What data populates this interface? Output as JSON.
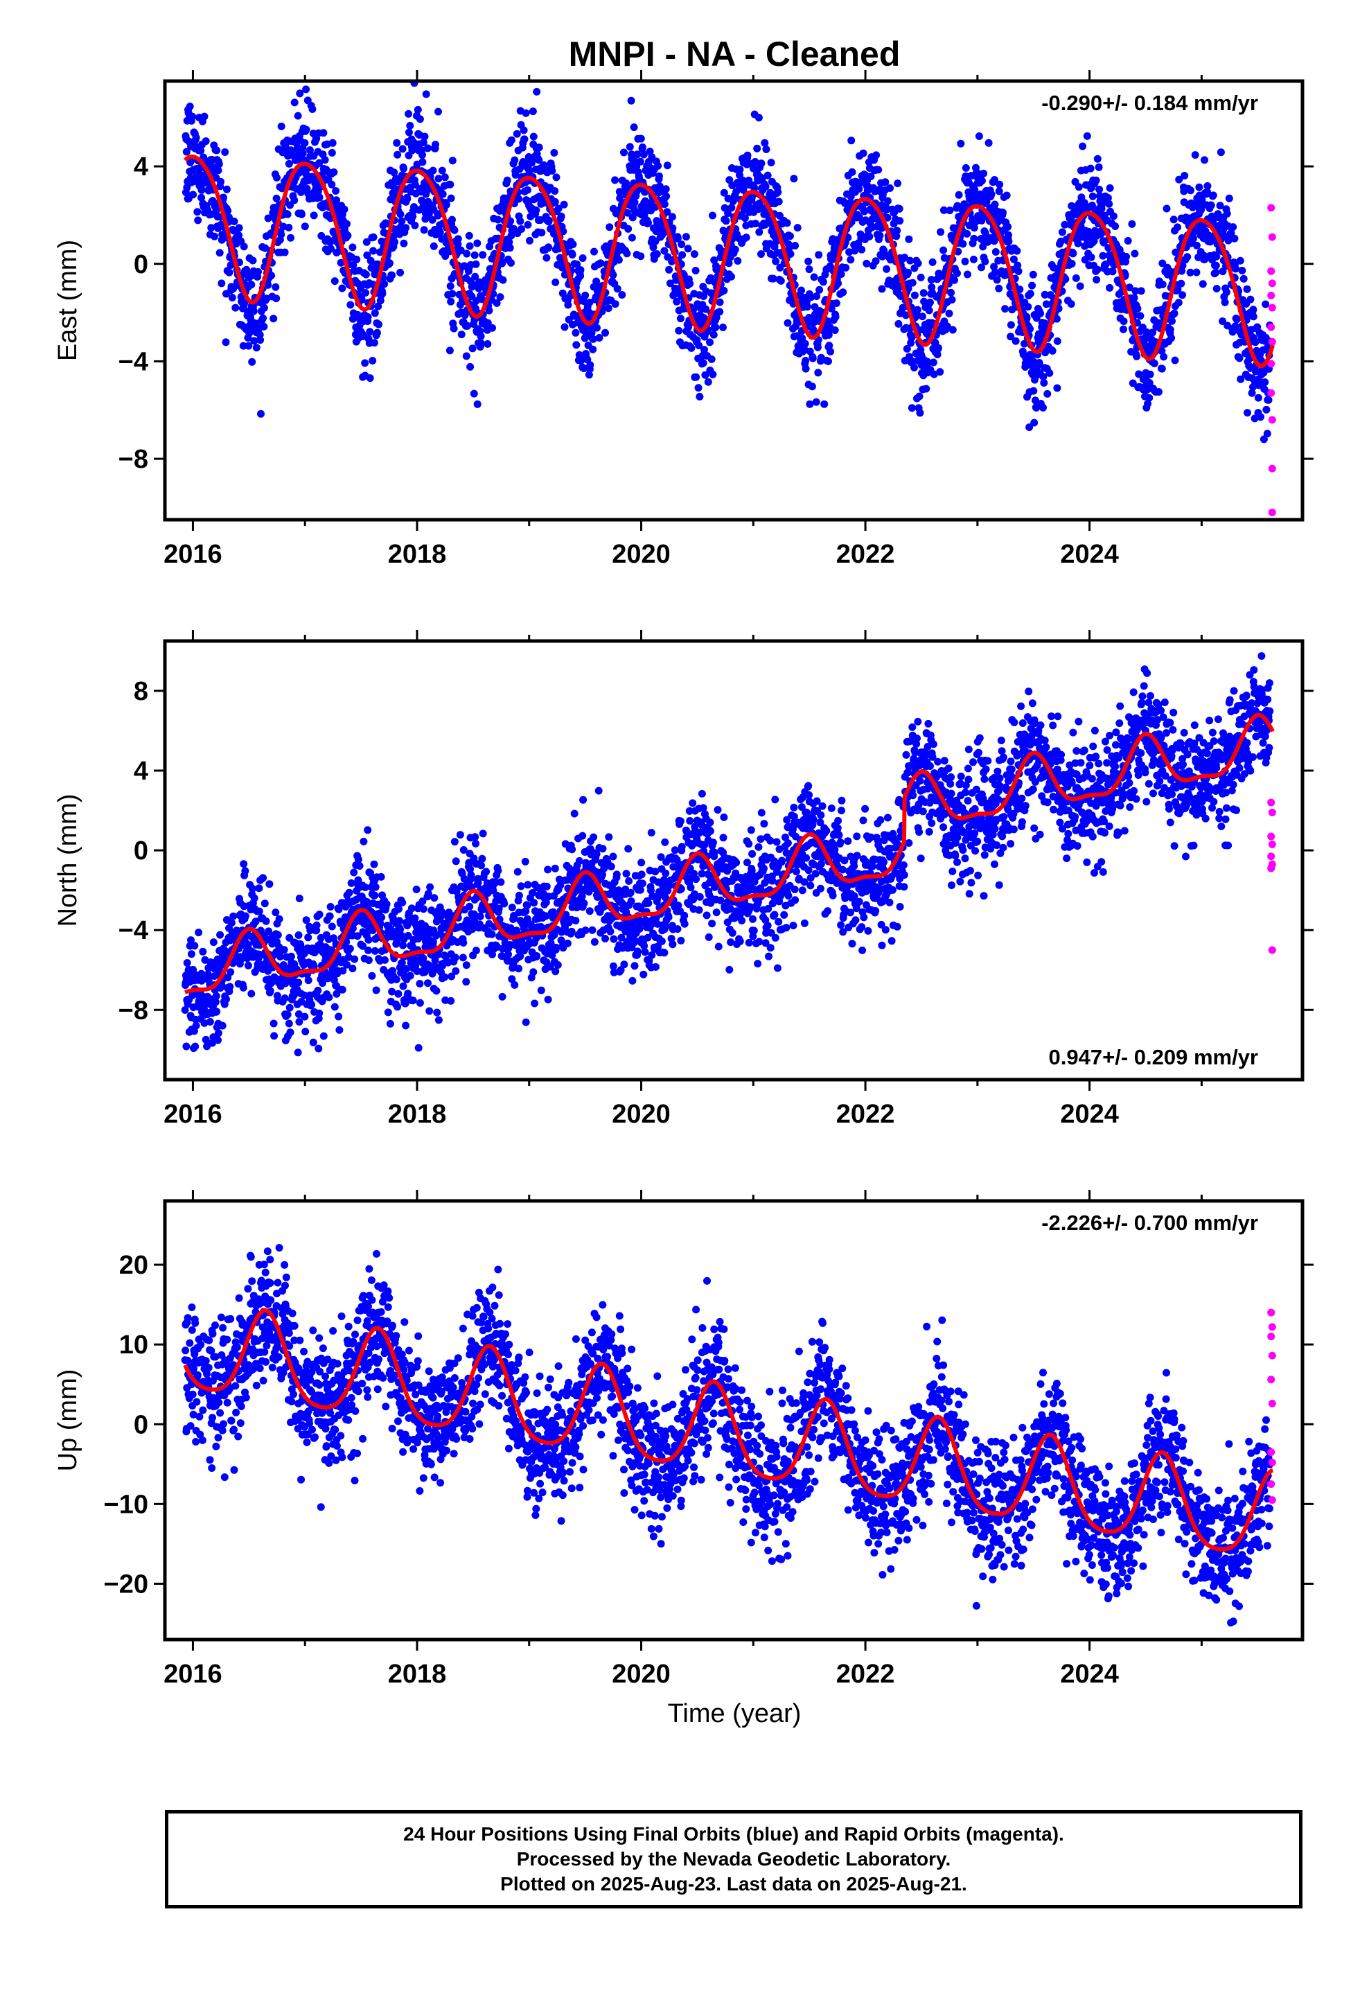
{
  "chart_data": {
    "title": "MNPI  - NA - Cleaned",
    "xlabel": "Time (year)",
    "x_tick_labels": [
      "2016",
      "2018",
      "2020",
      "2022",
      "2024"
    ],
    "colors": {
      "final_orbits": "#0000ff",
      "rapid_orbits": "#ff00ff",
      "model": "#ff0000",
      "frame": "#000000"
    },
    "panels": [
      {
        "type": "scatter",
        "name": "east",
        "ylabel": "East (mm)",
        "rate_label": "-0.290+/- 0.184 mm/yr",
        "rate_position": "top-right",
        "xlim": [
          2015.75,
          2025.9
        ],
        "ylim": [
          -10.5,
          7.5
        ],
        "yticks": [
          4,
          0,
          -4,
          -8
        ],
        "ytick_labels": [
          "4",
          "0",
          "−4",
          "−8"
        ],
        "model": {
          "offset": 0.5,
          "trend": -0.29,
          "annual_amp": 2.9,
          "annual_peak": 0.02,
          "semiannual_amp": 0.35,
          "semiannual_peak": 0.3,
          "ref_year": 2020.5
        },
        "scatter_sigma": 1.2,
        "rapid_points": [
          [
            2025.62,
            2.3
          ],
          [
            2025.63,
            1.1
          ],
          [
            2025.62,
            -0.3
          ],
          [
            2025.63,
            -0.8
          ],
          [
            2025.62,
            -1.3
          ],
          [
            2025.63,
            -1.8
          ],
          [
            2025.62,
            -2.6
          ],
          [
            2025.63,
            -3.2
          ],
          [
            2025.62,
            -4.1
          ],
          [
            2025.62,
            -5.3
          ],
          [
            2025.63,
            -6.4
          ],
          [
            2025.63,
            -8.4
          ],
          [
            2025.63,
            -10.2
          ]
        ]
      },
      {
        "type": "scatter",
        "name": "north",
        "ylabel": "North (mm)",
        "rate_label": "0.947+/- 0.209 mm/yr",
        "rate_position": "bottom-right",
        "xlim": [
          2015.75,
          2025.9
        ],
        "ylim": [
          -11.5,
          10.5
        ],
        "yticks": [
          8,
          4,
          0,
          -4,
          -8
        ],
        "ytick_labels": [
          "8",
          "4",
          "0",
          "−4",
          "−8"
        ],
        "model": {
          "offset": -0.8,
          "trend": 0.947,
          "annual_amp": 1.3,
          "annual_peak": 0.5,
          "semiannual_amp": 0.45,
          "semiannual_peak": 0.5,
          "ref_year": 2020.5,
          "step_year": 2022.35,
          "step_size": 2.2
        },
        "scatter_sigma": 1.4,
        "rapid_points": [
          [
            2025.62,
            2.4
          ],
          [
            2025.63,
            1.9
          ],
          [
            2025.62,
            0.7
          ],
          [
            2025.63,
            0.3
          ],
          [
            2025.62,
            -0.3
          ],
          [
            2025.63,
            -0.7
          ],
          [
            2025.62,
            -0.9
          ],
          [
            2025.63,
            -5.0
          ]
        ]
      },
      {
        "type": "scatter",
        "name": "up",
        "ylabel": "Up (mm)",
        "rate_label": "-2.226+/- 0.700 mm/yr",
        "rate_position": "top-right",
        "xlim": [
          2015.75,
          2025.9
        ],
        "ylim": [
          -27,
          28
        ],
        "yticks": [
          20,
          10,
          0,
          -10,
          -20
        ],
        "ytick_labels": [
          "20",
          "10",
          "0",
          "−10",
          "−20"
        ],
        "model": {
          "offset": -0.8,
          "trend": -2.226,
          "annual_amp": 5.5,
          "annual_peak": 0.65,
          "semiannual_amp": 1.0,
          "semiannual_peak": 0.15,
          "ref_year": 2020.5
        },
        "scatter_sigma": 4.0,
        "rapid_points": [
          [
            2025.62,
            14.0
          ],
          [
            2025.63,
            12.2
          ],
          [
            2025.62,
            11.0
          ],
          [
            2025.63,
            8.6
          ],
          [
            2025.62,
            5.6
          ],
          [
            2025.63,
            2.6
          ],
          [
            2025.62,
            -3.5
          ],
          [
            2025.63,
            -4.8
          ],
          [
            2025.62,
            -7.5
          ],
          [
            2025.63,
            -9.5
          ]
        ]
      }
    ],
    "data_range_years": [
      2015.93,
      2025.64
    ]
  },
  "footer": {
    "line1": "24 Hour Positions Using Final Orbits (blue) and Rapid Orbits (magenta).",
    "line2": "Processed by the Nevada Geodetic Laboratory.",
    "line3": "Plotted on 2025-Aug-23. Last data on 2025-Aug-21."
  }
}
